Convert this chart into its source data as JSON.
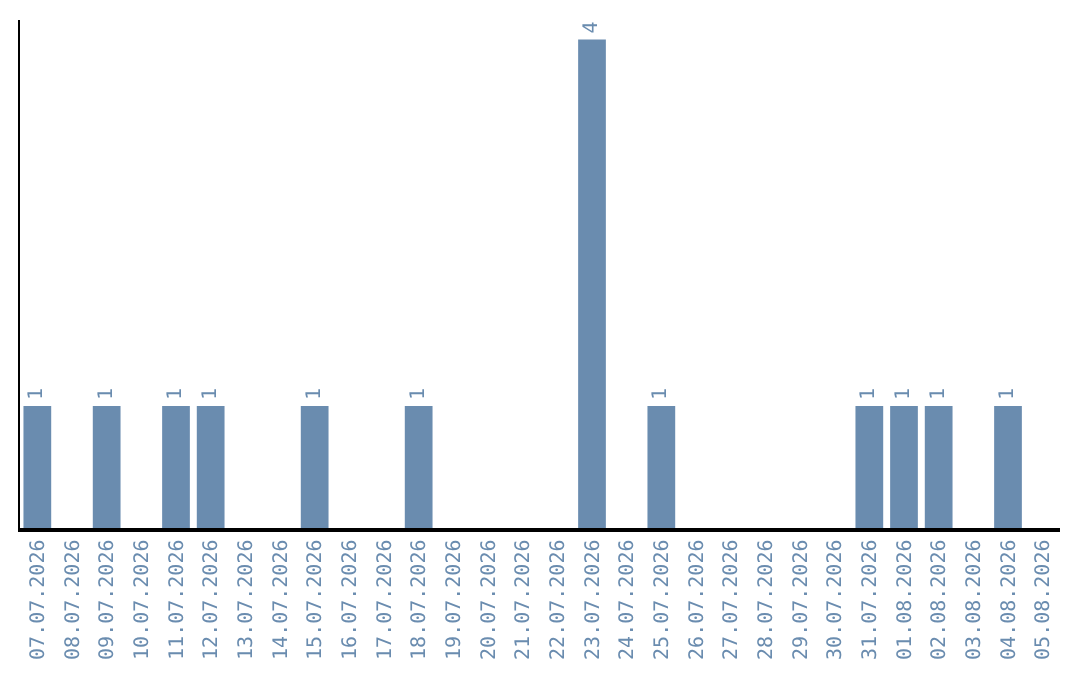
{
  "chart_data": {
    "type": "bar",
    "categories": [
      "07.07.2026",
      "08.07.2026",
      "09.07.2026",
      "10.07.2026",
      "11.07.2026",
      "12.07.2026",
      "13.07.2026",
      "14.07.2026",
      "15.07.2026",
      "16.07.2026",
      "17.07.2026",
      "18.07.2026",
      "19.07.2026",
      "20.07.2026",
      "21.07.2026",
      "22.07.2026",
      "23.07.2026",
      "24.07.2026",
      "25.07.2026",
      "26.07.2026",
      "27.07.2026",
      "28.07.2026",
      "29.07.2026",
      "30.07.2026",
      "31.07.2026",
      "01.08.2026",
      "02.08.2026",
      "03.08.2026",
      "04.08.2026",
      "05.08.2026"
    ],
    "values": [
      1,
      0,
      1,
      0,
      1,
      1,
      0,
      0,
      1,
      0,
      0,
      1,
      0,
      0,
      0,
      0,
      4,
      0,
      1,
      0,
      0,
      0,
      0,
      0,
      1,
      1,
      1,
      0,
      1,
      0
    ],
    "value_labels": [
      "1",
      null,
      "1",
      null,
      "1",
      "1",
      null,
      null,
      "1",
      null,
      null,
      "1",
      null,
      null,
      null,
      null,
      "4",
      null,
      "1",
      null,
      null,
      null,
      null,
      null,
      "1",
      "1",
      "1",
      null,
      "1",
      null
    ],
    "color": "#6a8caf",
    "legend": false
  }
}
